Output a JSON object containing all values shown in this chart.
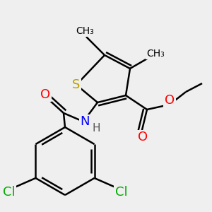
{
  "background_color": "#efefef",
  "atom_colors": {
    "S": "#b8a000",
    "O": "#ff0000",
    "N": "#0000ff",
    "Cl": "#00aa00",
    "C": "#000000",
    "H": "#555555"
  },
  "bond_color": "#000000",
  "bond_width": 1.8,
  "font_size_atom": 13,
  "font_size_methyl": 10
}
